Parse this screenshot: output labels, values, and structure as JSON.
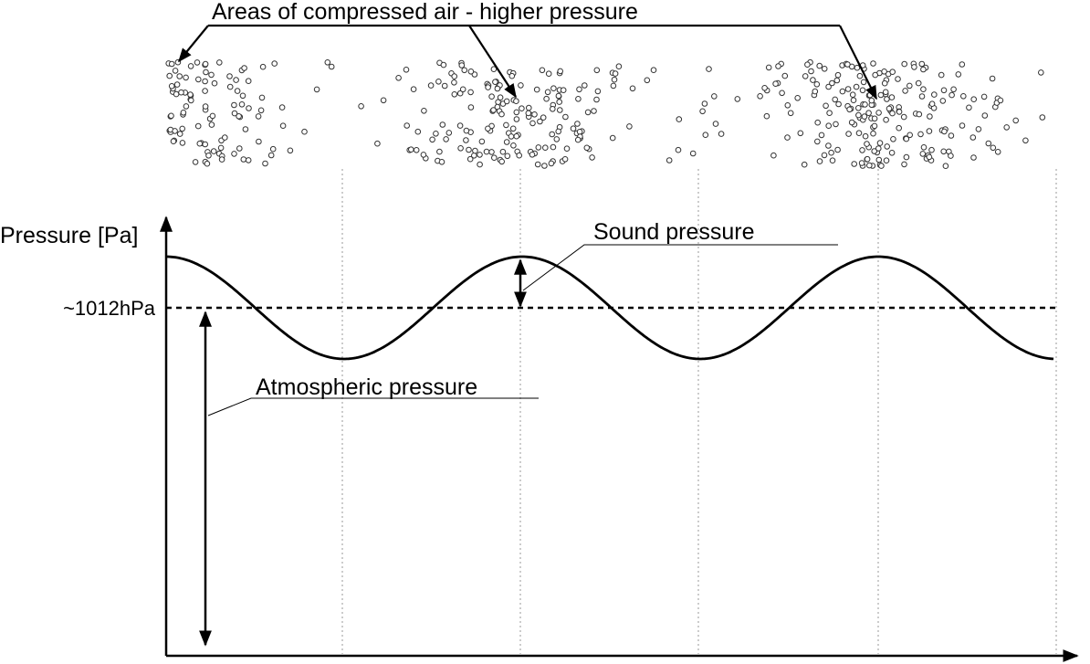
{
  "title": "Areas of compressed air - higher pressure",
  "y_axis_label": "Pressure [Pa]",
  "baseline_label": "~1012hPa",
  "sound_pressure_label": "Sound pressure",
  "atmospheric_pressure_label": "Atmospheric pressure"
}
